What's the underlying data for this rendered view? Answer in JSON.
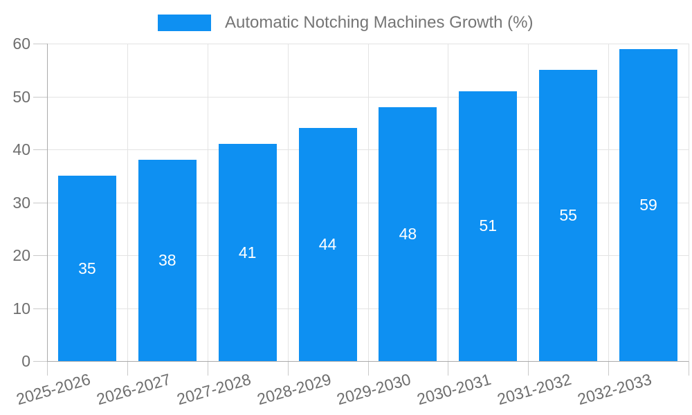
{
  "legend": {
    "label": "Automatic Notching Machines Growth (%)"
  },
  "colors": {
    "bar": "#0E90F2",
    "legend_text": "#757575",
    "axis_label": "#6E6E6E",
    "grid": "#E3E3E3",
    "axis_line": "#AAAAAA",
    "tick": "#C9C9C9",
    "value_label": "#FFFFFF",
    "background": "#FFFFFF"
  },
  "chart_data": {
    "type": "bar",
    "title": "",
    "legend_entries": [
      "Automatic Notching Machines Growth (%)"
    ],
    "legend_position": "top",
    "categories": [
      "2025-2026",
      "2026-2027",
      "2027-2028",
      "2028-2029",
      "2029-2030",
      "2030-2031",
      "2031-2032",
      "2032-2033"
    ],
    "values": [
      35,
      38,
      41,
      44,
      48,
      51,
      55,
      59
    ],
    "bar_value_labels": [
      "35",
      "38",
      "41",
      "44",
      "48",
      "51",
      "55",
      "59"
    ],
    "xlabel": "",
    "ylabel": "",
    "ylim": [
      0,
      60
    ],
    "yticks": [
      0,
      10,
      20,
      30,
      40,
      50,
      60
    ],
    "grid": true,
    "bar_label_position": "center",
    "x_label_rotation_deg": -16
  }
}
